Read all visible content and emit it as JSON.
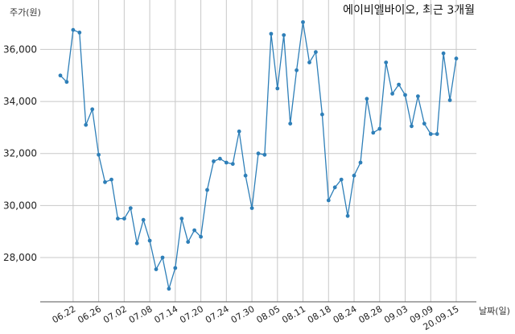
{
  "chart_data": {
    "type": "line",
    "title": "에이비엘바이오, 최근 3개월",
    "ylabel": "주가(원)",
    "xlabel": "날짜(일)",
    "ylim": [
      26300,
      37900
    ],
    "yticks": [
      28000,
      30000,
      32000,
      34000,
      36000
    ],
    "ytick_labels": [
      "28,000",
      "30,000",
      "32,000",
      "34,000",
      "36,000"
    ],
    "xtick_labels": [
      "06.22",
      "06.26",
      "07.02",
      "07.08",
      "07.14",
      "07.20",
      "07.24",
      "07.30",
      "08.05",
      "08.11",
      "08.18",
      "08.24",
      "08.28",
      "09.03",
      "09.09",
      "20.09.15"
    ],
    "xtick_index": [
      2,
      6,
      10,
      14,
      18,
      22,
      26,
      30,
      34,
      38,
      42,
      46,
      50,
      54,
      58,
      62
    ],
    "grid": true,
    "line_color": "#2e7fb8",
    "series": [
      {
        "name": "",
        "values": [
          35000,
          34750,
          36750,
          36650,
          33100,
          33700,
          31950,
          30900,
          31000,
          29500,
          29500,
          29900,
          28550,
          29450,
          28650,
          27550,
          28000,
          26800,
          27600,
          29500,
          28600,
          29050,
          28800,
          30600,
          31700,
          31800,
          31650,
          31600,
          32850,
          31150,
          29900,
          32000,
          31950,
          36600,
          34500,
          36550,
          33150,
          35200,
          37050,
          35500,
          35900,
          33500,
          30200,
          30700,
          31000,
          29600,
          31150,
          31650,
          34100,
          32800,
          32950,
          35500,
          34300,
          34650,
          34250,
          33050,
          34200,
          33150,
          32750,
          32750,
          35850,
          34050,
          35650
        ]
      }
    ]
  }
}
